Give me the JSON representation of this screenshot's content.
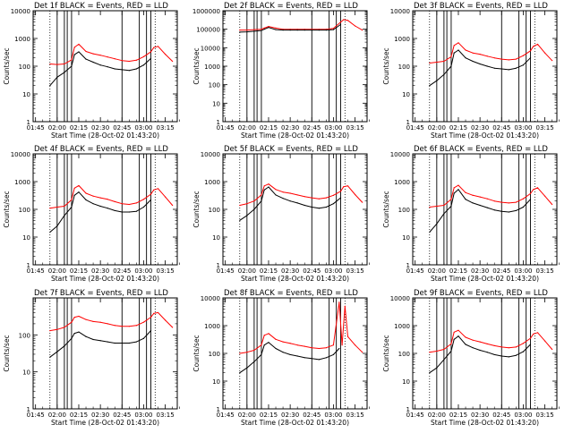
{
  "figure": {
    "xlabel": "Start Time (28-Oct-02 01:43:20)",
    "ylabel": "Counts/sec",
    "xticks": [
      "01:45",
      "02:00",
      "02:15",
      "02:30",
      "02:45",
      "03:00",
      "03:15"
    ],
    "colors": {
      "events": "#000000",
      "lld": "#ff0000",
      "axes": "#000000",
      "background": "#ffffff"
    }
  },
  "chart_data": [
    {
      "type": "line",
      "title": "Det 1f BLACK = Events, RED = LLD",
      "ylabel": "Counts/sec",
      "xlabel": "",
      "xlim": [
        "01:43:20",
        "03:23:20"
      ],
      "yscale": "log",
      "ylim": [
        1,
        10000
      ],
      "yticks": [
        "1",
        "10",
        "100",
        "1000",
        "10000"
      ],
      "x": [
        "01:55",
        "02:00",
        "02:05",
        "02:10",
        "02:12",
        "02:15",
        "02:20",
        "02:25",
        "02:30",
        "02:35",
        "02:40",
        "02:45",
        "02:50",
        "02:55",
        "03:00",
        "03:05",
        "03:07",
        "03:10",
        "03:15",
        "03:20"
      ],
      "series": [
        {
          "name": "LLD",
          "values": [
            120,
            115,
            120,
            170,
            480,
            620,
            340,
            280,
            250,
            215,
            185,
            160,
            150,
            165,
            220,
            330,
            470,
            520,
            270,
            150
          ]
        },
        {
          "name": "Events",
          "values": [
            20,
            40,
            60,
            100,
            260,
            330,
            180,
            140,
            110,
            95,
            80,
            75,
            70,
            80,
            110,
            190,
            null,
            null,
            null,
            null
          ]
        }
      ],
      "vlines": [
        "02:00",
        "02:05",
        "02:07",
        "02:10",
        "02:45",
        "02:57",
        "03:02",
        "03:05"
      ],
      "dotted": [
        "01:55",
        "03:08"
      ]
    },
    {
      "type": "line",
      "title": "Det 2f BLACK = Events, RED = LLD",
      "ylabel": "Counts/sec",
      "xlabel": "",
      "xlim": [
        "01:43:20",
        "03:23:20"
      ],
      "yscale": "log",
      "ylim": [
        1,
        1000000
      ],
      "yticks": [
        "1",
        "10",
        "100",
        "1000",
        "10000",
        "100000",
        "1000000"
      ],
      "x": [
        "01:55",
        "02:00",
        "02:05",
        "02:10",
        "02:12",
        "02:15",
        "02:20",
        "02:25",
        "02:30",
        "02:35",
        "02:40",
        "02:45",
        "02:50",
        "02:55",
        "03:00",
        "03:05",
        "03:07",
        "03:10",
        "03:15",
        "03:20"
      ],
      "series": [
        {
          "name": "LLD",
          "values": [
            90000,
            90000,
            95000,
            100000,
            115000,
            140000,
            115000,
            100000,
            100000,
            100000,
            100000,
            100000,
            100000,
            100000,
            110000,
            240000,
            330000,
            300000,
            150000,
            90000
          ]
        },
        {
          "name": "Events",
          "values": [
            70000,
            72000,
            78000,
            85000,
            100000,
            125000,
            95000,
            90000,
            90000,
            90000,
            90000,
            90000,
            90000,
            90000,
            95000,
            180000,
            null,
            null,
            null,
            null
          ]
        }
      ],
      "vlines": [
        "02:00",
        "02:05",
        "02:07",
        "02:10",
        "02:45",
        "02:57",
        "03:02",
        "03:05"
      ],
      "dotted": [
        "01:55",
        "03:08"
      ]
    },
    {
      "type": "line",
      "title": "Det 3f BLACK = Events, RED = LLD",
      "ylabel": "Counts/sec",
      "xlabel": "",
      "xlim": [
        "01:43:20",
        "03:23:20"
      ],
      "yscale": "log",
      "ylim": [
        1,
        10000
      ],
      "yticks": [
        "1",
        "10",
        "100",
        "1000",
        "10000"
      ],
      "x": [
        "01:55",
        "02:00",
        "02:05",
        "02:10",
        "02:12",
        "02:15",
        "02:20",
        "02:25",
        "02:30",
        "02:35",
        "02:40",
        "02:45",
        "02:50",
        "02:55",
        "03:00",
        "03:05",
        "03:07",
        "03:10",
        "03:15",
        "03:20"
      ],
      "series": [
        {
          "name": "LLD",
          "values": [
            130,
            140,
            150,
            220,
            560,
            700,
            380,
            300,
            270,
            230,
            200,
            180,
            170,
            180,
            240,
            360,
            520,
            620,
            300,
            160
          ]
        },
        {
          "name": "Events",
          "values": [
            20,
            30,
            50,
            100,
            300,
            380,
            200,
            150,
            120,
            100,
            85,
            80,
            75,
            85,
            110,
            200,
            null,
            null,
            null,
            null
          ]
        }
      ],
      "vlines": [
        "02:00",
        "02:05",
        "02:07",
        "02:10",
        "02:45",
        "02:57",
        "03:02",
        "03:05"
      ],
      "dotted": [
        "01:55",
        "03:08"
      ]
    },
    {
      "type": "line",
      "title": "Det 4f BLACK = Events, RED = LLD",
      "ylabel": "Counts/sec",
      "xlabel": "",
      "xlim": [
        "01:43:20",
        "03:23:20"
      ],
      "yscale": "log",
      "ylim": [
        1,
        10000
      ],
      "yticks": [
        "1",
        "10",
        "100",
        "1000",
        "10000"
      ],
      "x": [
        "01:55",
        "02:00",
        "02:05",
        "02:10",
        "02:12",
        "02:15",
        "02:20",
        "02:25",
        "02:30",
        "02:35",
        "02:40",
        "02:45",
        "02:50",
        "02:55",
        "03:00",
        "03:05",
        "03:07",
        "03:10",
        "03:15",
        "03:20"
      ],
      "series": [
        {
          "name": "LLD",
          "values": [
            110,
            120,
            130,
            220,
            580,
            720,
            380,
            300,
            260,
            230,
            190,
            160,
            150,
            170,
            230,
            350,
            500,
            560,
            280,
            140
          ]
        },
        {
          "name": "Events",
          "values": [
            15,
            25,
            60,
            120,
            320,
            420,
            220,
            160,
            130,
            110,
            90,
            80,
            80,
            85,
            120,
            220,
            null,
            null,
            null,
            null
          ]
        }
      ],
      "vlines": [
        "02:00",
        "02:05",
        "02:07",
        "02:10",
        "02:45",
        "02:57",
        "03:02",
        "03:05"
      ],
      "dotted": [
        "01:55",
        "03:08"
      ]
    },
    {
      "type": "line",
      "title": "Det 5f BLACK = Events, RED = LLD",
      "ylabel": "Counts/sec",
      "xlabel": "",
      "xlim": [
        "01:43:20",
        "03:23:20"
      ],
      "yscale": "log",
      "ylim": [
        1,
        10000
      ],
      "yticks": [
        "1",
        "10",
        "100",
        "1000",
        "10000"
      ],
      "x": [
        "01:55",
        "02:00",
        "02:05",
        "02:10",
        "02:12",
        "02:15",
        "02:20",
        "02:25",
        "02:30",
        "02:35",
        "02:40",
        "02:45",
        "02:50",
        "02:55",
        "03:00",
        "03:05",
        "03:07",
        "03:10",
        "03:15",
        "03:20"
      ],
      "series": [
        {
          "name": "LLD",
          "values": [
            140,
            160,
            200,
            330,
            700,
            820,
            520,
            420,
            380,
            330,
            290,
            260,
            240,
            260,
            320,
            450,
            650,
            700,
            340,
            180
          ]
        },
        {
          "name": "Events",
          "values": [
            40,
            60,
            100,
            200,
            500,
            640,
            330,
            250,
            200,
            170,
            140,
            120,
            110,
            120,
            160,
            260,
            null,
            null,
            null,
            null
          ]
        }
      ],
      "vlines": [
        "02:00",
        "02:05",
        "02:07",
        "02:10",
        "02:45",
        "02:57",
        "03:02",
        "03:05"
      ],
      "dotted": [
        "01:55",
        "03:08"
      ]
    },
    {
      "type": "line",
      "title": "Det 6f BLACK = Events, RED = LLD",
      "ylabel": "Counts/sec",
      "xlabel": "",
      "xlim": [
        "01:43:20",
        "03:23:20"
      ],
      "yscale": "log",
      "ylim": [
        1,
        10000
      ],
      "yticks": [
        "1",
        "10",
        "100",
        "1000",
        "10000"
      ],
      "x": [
        "01:55",
        "02:00",
        "02:05",
        "02:10",
        "02:12",
        "02:15",
        "02:20",
        "02:25",
        "02:30",
        "02:35",
        "02:40",
        "02:45",
        "02:50",
        "02:55",
        "03:00",
        "03:05",
        "03:07",
        "03:10",
        "03:15",
        "03:20"
      ],
      "series": [
        {
          "name": "LLD",
          "values": [
            120,
            130,
            140,
            230,
            600,
            740,
            400,
            320,
            280,
            240,
            200,
            180,
            170,
            180,
            240,
            370,
            520,
            600,
            300,
            150
          ]
        },
        {
          "name": "Events",
          "values": [
            15,
            30,
            70,
            130,
            380,
            520,
            230,
            170,
            140,
            115,
            95,
            85,
            80,
            90,
            120,
            230,
            null,
            null,
            null,
            null
          ]
        }
      ],
      "vlines": [
        "02:00",
        "02:05",
        "02:07",
        "02:10",
        "02:45",
        "02:57",
        "03:02",
        "03:05"
      ],
      "dotted": [
        "01:55",
        "03:08"
      ]
    },
    {
      "type": "line",
      "title": "Det 7f BLACK = Events, RED = LLD",
      "ylabel": "Counts/sec",
      "xlabel": "",
      "xlim": [
        "01:43:20",
        "03:23:20"
      ],
      "yscale": "log",
      "ylim": [
        1,
        1000
      ],
      "yticks": [
        "1",
        "10",
        "100"
      ],
      "x": [
        "01:55",
        "02:00",
        "02:05",
        "02:10",
        "02:12",
        "02:15",
        "02:20",
        "02:25",
        "02:30",
        "02:35",
        "02:40",
        "02:45",
        "02:50",
        "02:55",
        "03:00",
        "03:05",
        "03:07",
        "03:10",
        "03:15",
        "03:20"
      ],
      "series": [
        {
          "name": "LLD",
          "values": [
            130,
            140,
            160,
            220,
            300,
            320,
            260,
            230,
            220,
            200,
            180,
            170,
            170,
            180,
            220,
            300,
            380,
            400,
            250,
            160
          ]
        },
        {
          "name": "Events",
          "values": [
            25,
            35,
            50,
            80,
            110,
            120,
            90,
            75,
            70,
            65,
            60,
            60,
            60,
            65,
            80,
            130,
            null,
            null,
            null,
            null
          ]
        }
      ],
      "vlines": [
        "02:00",
        "02:05",
        "02:07",
        "02:10",
        "02:45",
        "02:57",
        "03:02",
        "03:05"
      ],
      "dotted": [
        "01:55",
        "03:08"
      ]
    },
    {
      "type": "line",
      "title": "Det 8f BLACK = Events, RED = LLD",
      "ylabel": "Counts/sec",
      "xlabel": "",
      "xlim": [
        "01:43:20",
        "03:23:20"
      ],
      "yscale": "log",
      "ylim": [
        1,
        10000
      ],
      "yticks": [
        "1",
        "10",
        "100",
        "1000",
        "10000"
      ],
      "x": [
        "01:55",
        "02:00",
        "02:05",
        "02:10",
        "02:12",
        "02:15",
        "02:20",
        "02:25",
        "02:30",
        "02:35",
        "02:40",
        "02:45",
        "02:50",
        "02:55",
        "03:00",
        "03:04",
        "03:06",
        "03:08",
        "03:10",
        "03:15",
        "03:20"
      ],
      "series": [
        {
          "name": "LLD",
          "values": [
            100,
            110,
            130,
            200,
            450,
            520,
            320,
            260,
            230,
            200,
            180,
            160,
            150,
            160,
            200,
            7000,
            200,
            5000,
            400,
            200,
            110
          ]
        },
        {
          "name": "Events",
          "values": [
            20,
            30,
            50,
            90,
            200,
            250,
            150,
            110,
            90,
            80,
            70,
            65,
            60,
            70,
            90,
            150,
            null,
            null,
            null,
            null,
            null
          ]
        }
      ],
      "vlines": [
        "02:00",
        "02:05",
        "02:07",
        "02:10",
        "02:45",
        "02:57",
        "03:02",
        "03:05"
      ],
      "dotted": [
        "01:55",
        "03:08"
      ]
    },
    {
      "type": "line",
      "title": "Det 9f BLACK = Events, RED = LLD",
      "ylabel": "Counts/sec",
      "xlabel": "",
      "xlim": [
        "01:43:20",
        "03:23:20"
      ],
      "yscale": "log",
      "ylim": [
        1,
        10000
      ],
      "yticks": [
        "1",
        "10",
        "100",
        "1000",
        "10000"
      ],
      "x": [
        "01:55",
        "02:00",
        "02:05",
        "02:10",
        "02:12",
        "02:15",
        "02:20",
        "02:25",
        "02:30",
        "02:35",
        "02:40",
        "02:45",
        "02:50",
        "02:55",
        "03:00",
        "03:05",
        "03:07",
        "03:10",
        "03:15",
        "03:20"
      ],
      "series": [
        {
          "name": "LLD",
          "values": [
            110,
            120,
            140,
            220,
            580,
            680,
            380,
            300,
            260,
            220,
            190,
            170,
            160,
            170,
            230,
            350,
            500,
            560,
            280,
            140
          ]
        },
        {
          "name": "Events",
          "values": [
            20,
            30,
            60,
            120,
            320,
            420,
            210,
            160,
            130,
            110,
            90,
            80,
            75,
            85,
            115,
            210,
            null,
            null,
            null,
            null
          ]
        }
      ],
      "vlines": [
        "02:00",
        "02:05",
        "02:07",
        "02:10",
        "02:45",
        "02:57",
        "03:02",
        "03:05"
      ],
      "dotted": [
        "01:55",
        "03:08"
      ]
    }
  ]
}
